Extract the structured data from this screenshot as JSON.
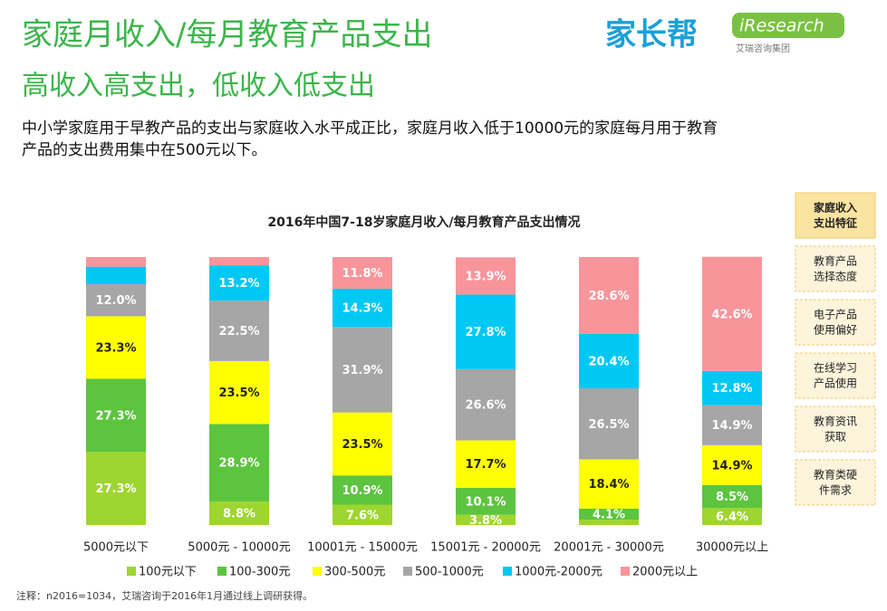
{
  "header": {
    "title": "家庭月收入/每月教育产品支出",
    "subtitle": "高收入高支出，低收入低支出",
    "description": [
      "中小学家庭用于早教产品的支出与家庭收入水平成正比，家庭月收入低于10000元的家庭每月用于教育",
      "产品的支出费用集中在500元以下。"
    ]
  },
  "logos": {
    "brand": "家长帮",
    "research": "iResearch",
    "research_sub": "艾瑞咨询集团"
  },
  "sidebar": [
    [
      "家庭收入",
      "支出特征"
    ],
    [
      "教育产品",
      "选择态度"
    ],
    [
      "电子产品",
      "使用偏好"
    ],
    [
      "在线学习",
      "产品使用"
    ],
    [
      "教育资讯",
      "获取"
    ],
    [
      "教育类硬",
      "件需求"
    ]
  ],
  "chart_data": {
    "type": "stacked_bar",
    "title": "2016年中国7-18岁家庭月收入/每月教育产品支出情况",
    "categories": [
      "5000元以下",
      "5000元 - 10000元",
      "10001元 - 15000元",
      "15001元 - 20000元",
      "20001元 - 30000元",
      "30000元以上"
    ],
    "ylim": [
      0,
      100
    ],
    "series": [
      {
        "name": "100元以下",
        "color": "#9ed530",
        "values": [
          27.3,
          8.8,
          7.6,
          3.8,
          2.0,
          6.4
        ],
        "value_labels": [
          "27.3%",
          "8.8%",
          "7.6%",
          "3.8%",
          null,
          "6.4%"
        ]
      },
      {
        "name": "100-300元",
        "color": "#5cc43e",
        "values": [
          27.3,
          28.9,
          10.9,
          10.1,
          4.1,
          8.5
        ],
        "value_labels": [
          "27.3%",
          "28.9%",
          "10.9%",
          "10.1%",
          "4.1%",
          "8.5%"
        ]
      },
      {
        "name": "300-500元",
        "color": "#ffff00",
        "values": [
          23.3,
          23.5,
          23.5,
          17.7,
          18.4,
          14.9
        ],
        "value_labels": [
          "23.3%",
          "23.5%",
          "23.5%",
          "17.7%",
          "18.4%",
          "14.9%"
        ]
      },
      {
        "name": "500-1000元",
        "color": "#a6a6a6",
        "values": [
          12.0,
          22.5,
          31.9,
          26.6,
          26.5,
          14.9
        ],
        "value_labels": [
          "12.0%",
          "22.5%",
          "31.9%",
          "26.6%",
          "26.5%",
          "14.9%"
        ]
      },
      {
        "name": "1000元-2000元",
        "color": "#00c8f5",
        "values": [
          6.5,
          13.2,
          14.3,
          27.8,
          20.4,
          12.8
        ],
        "value_labels": [
          null,
          "13.2%",
          "14.3%",
          "27.8%",
          "20.4%",
          "12.8%"
        ]
      },
      {
        "name": "2000元以上",
        "color": "#f8959b",
        "values": [
          3.6,
          3.1,
          11.8,
          13.9,
          28.6,
          42.6
        ],
        "value_labels": [
          null,
          null,
          "11.8%",
          "13.9%",
          "28.6%",
          "42.6%"
        ]
      }
    ]
  },
  "note": "注释：n2016=1034，艾瑞咨询于2016年1月通过线上调研获得。"
}
